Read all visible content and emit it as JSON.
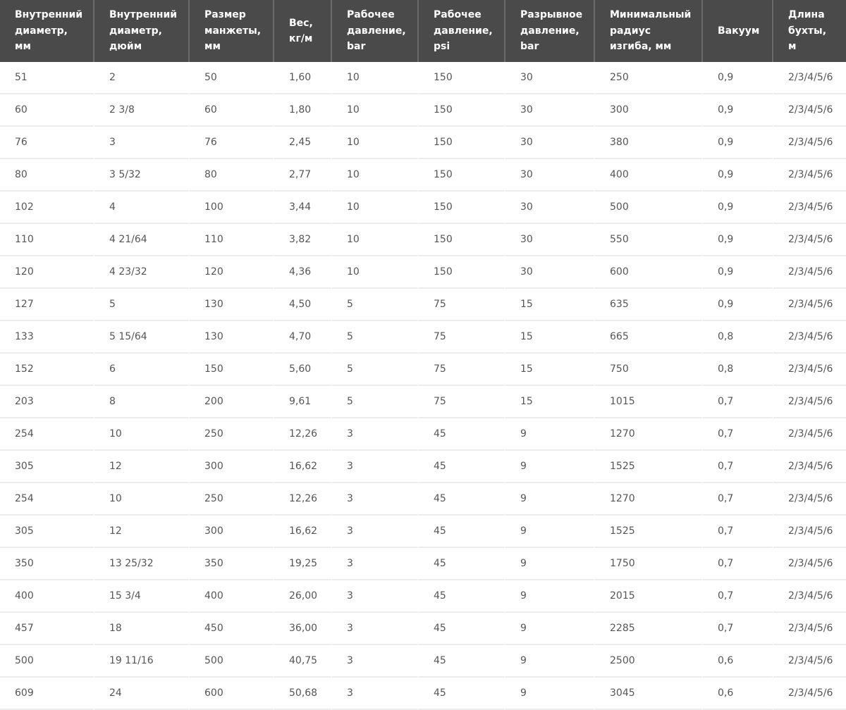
{
  "table": {
    "header": [
      [
        "Внутренний",
        "диаметр,",
        "мм"
      ],
      [
        "Внутренний",
        "диаметр,",
        "дюйм"
      ],
      [
        "Размер",
        "манжеты,",
        "мм"
      ],
      [
        "Вес,",
        "кг/м"
      ],
      [
        "Рабочее",
        "давление,",
        "bar"
      ],
      [
        "Рабочее",
        "давление,",
        "psi"
      ],
      [
        "Разрывное",
        "давление,",
        "bar"
      ],
      [
        "Минимальный",
        "радиус",
        "изгиба, мм"
      ],
      [
        "Вакуум"
      ],
      [
        "Длина",
        "бухты,",
        "м"
      ]
    ],
    "rows": [
      [
        "51",
        "2",
        "50",
        "1,60",
        "10",
        "150",
        "30",
        "250",
        "0,9",
        "2/3/4/5/6"
      ],
      [
        "60",
        "2 3/8",
        "60",
        "1,80",
        "10",
        "150",
        "30",
        "300",
        "0,9",
        "2/3/4/5/6"
      ],
      [
        "76",
        "3",
        "76",
        "2,45",
        "10",
        "150",
        "30",
        "380",
        "0,9",
        "2/3/4/5/6"
      ],
      [
        "80",
        "3 5/32",
        "80",
        "2,77",
        "10",
        "150",
        "30",
        "400",
        "0,9",
        "2/3/4/5/6"
      ],
      [
        "102",
        "4",
        "100",
        "3,44",
        "10",
        "150",
        "30",
        "500",
        "0,9",
        "2/3/4/5/6"
      ],
      [
        "110",
        "4 21/64",
        "110",
        "3,82",
        "10",
        "150",
        "30",
        "550",
        "0,9",
        "2/3/4/5/6"
      ],
      [
        "120",
        "4 23/32",
        "120",
        "4,36",
        "10",
        "150",
        "30",
        "600",
        "0,9",
        "2/3/4/5/6"
      ],
      [
        "127",
        "5",
        "130",
        "4,50",
        "5",
        "75",
        "15",
        "635",
        "0,9",
        "2/3/4/5/6"
      ],
      [
        "133",
        "5 15/64",
        "130",
        "4,70",
        "5",
        "75",
        "15",
        "665",
        "0,8",
        "2/3/4/5/6"
      ],
      [
        "152",
        "6",
        "150",
        "5,60",
        "5",
        "75",
        "15",
        "750",
        "0,8",
        "2/3/4/5/6"
      ],
      [
        "203",
        "8",
        "200",
        "9,61",
        "5",
        "75",
        "15",
        "1015",
        "0,7",
        "2/3/4/5/6"
      ],
      [
        "254",
        "10",
        "250",
        "12,26",
        "3",
        "45",
        "9",
        "1270",
        "0,7",
        "2/3/4/5/6"
      ],
      [
        "305",
        "12",
        "300",
        "16,62",
        "3",
        "45",
        "9",
        "1525",
        "0,7",
        "2/3/4/5/6"
      ],
      [
        "254",
        "10",
        "250",
        "12,26",
        "3",
        "45",
        "9",
        "1270",
        "0,7",
        "2/3/4/5/6"
      ],
      [
        "305",
        "12",
        "300",
        "16,62",
        "3",
        "45",
        "9",
        "1525",
        "0,7",
        "2/3/4/5/6"
      ],
      [
        "350",
        "13 25/32",
        "350",
        "19,25",
        "3",
        "45",
        "9",
        "1750",
        "0,7",
        "2/3/4/5/6"
      ],
      [
        "400",
        "15 3/4",
        "400",
        "26,00",
        "3",
        "45",
        "9",
        "2015",
        "0,7",
        "2/3/4/5/6"
      ],
      [
        "457",
        "18",
        "450",
        "36,00",
        "3",
        "45",
        "9",
        "2285",
        "0,7",
        "2/3/4/5/6"
      ],
      [
        "500",
        "19 11/16",
        "500",
        "40,75",
        "3",
        "45",
        "9",
        "2500",
        "0,6",
        "2/3/4/5/6"
      ],
      [
        "609",
        "24",
        "600",
        "50,68",
        "3",
        "45",
        "9",
        "3045",
        "0,6",
        "2/3/4/5/6"
      ]
    ]
  }
}
